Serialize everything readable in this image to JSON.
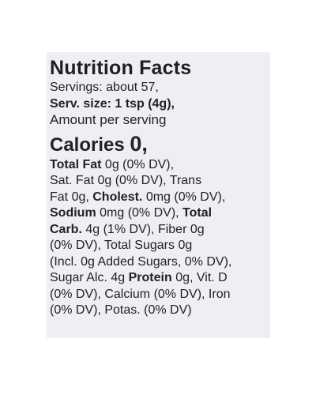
{
  "label": {
    "title": "Nutrition Facts",
    "servings": "Servings: about 57,",
    "serv_size": "Serv. size: 1 tsp (4g),",
    "amount_per_serving": "Amount per serving",
    "calories_label": "Calories",
    "calories_value": "0,",
    "nutrient_lines": [
      [
        {
          "text": "Total Fat",
          "bold": true
        },
        {
          "text": " 0g (0% DV),",
          "bold": false
        }
      ],
      [
        {
          "text": "Sat. Fat 0g (0% DV), Trans",
          "bold": false
        }
      ],
      [
        {
          "text": "Fat 0g, ",
          "bold": false
        },
        {
          "text": "Cholest.",
          "bold": true
        },
        {
          "text": " 0mg (0% DV),",
          "bold": false
        }
      ],
      [
        {
          "text": "Sodium",
          "bold": true
        },
        {
          "text": " 0mg (0% DV), ",
          "bold": false
        },
        {
          "text": "Total",
          "bold": true
        }
      ],
      [
        {
          "text": "Carb.",
          "bold": true
        },
        {
          "text": " 4g (1% DV), Fiber 0g",
          "bold": false
        }
      ],
      [
        {
          "text": "(0% DV), Total Sugars 0g",
          "bold": false
        }
      ],
      [
        {
          "text": "(Incl. 0g Added Sugars, 0% DV),",
          "bold": false
        }
      ],
      [
        {
          "text": "Sugar Alc. 4g ",
          "bold": false
        },
        {
          "text": "Protein",
          "bold": true
        },
        {
          "text": " 0g, Vit. D",
          "bold": false
        }
      ],
      [
        {
          "text": "(0% DV), Calcium (0% DV), Iron",
          "bold": false
        }
      ],
      [
        {
          "text": "(0% DV), Potas. (0% DV)",
          "bold": false
        }
      ]
    ]
  }
}
